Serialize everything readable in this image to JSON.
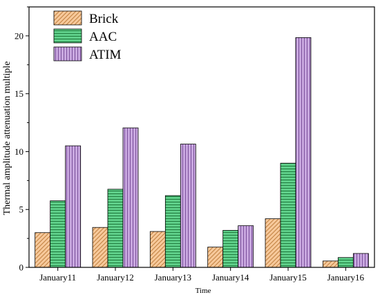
{
  "chart_data": {
    "type": "bar",
    "title": "",
    "xlabel": "Time",
    "ylabel": "Thermal amplitude attenuation multiple",
    "categories": [
      "January11",
      "January12",
      "January13",
      "January14",
      "January15",
      "January16"
    ],
    "series": [
      {
        "name": "Brick",
        "values": [
          3.0,
          3.45,
          3.1,
          1.75,
          4.2,
          0.55
        ],
        "color": "#f7c99b",
        "hatch": "diagonal",
        "hatch_color": "#c08040"
      },
      {
        "name": "AAC",
        "values": [
          5.75,
          6.75,
          6.2,
          3.2,
          9.0,
          0.85
        ],
        "color": "#5fd08a",
        "hatch": "horizontal",
        "hatch_color": "#1f7a3d"
      },
      {
        "name": "ATIM",
        "values": [
          10.5,
          12.05,
          10.65,
          3.6,
          19.85,
          1.2
        ],
        "color": "#c9a8e0",
        "hatch": "vertical",
        "hatch_color": "#7a4f9a"
      }
    ],
    "ylim": [
      0,
      22.5
    ],
    "yticks": [
      0,
      5,
      10,
      15,
      20
    ],
    "grid": false,
    "legend": "top-left"
  }
}
